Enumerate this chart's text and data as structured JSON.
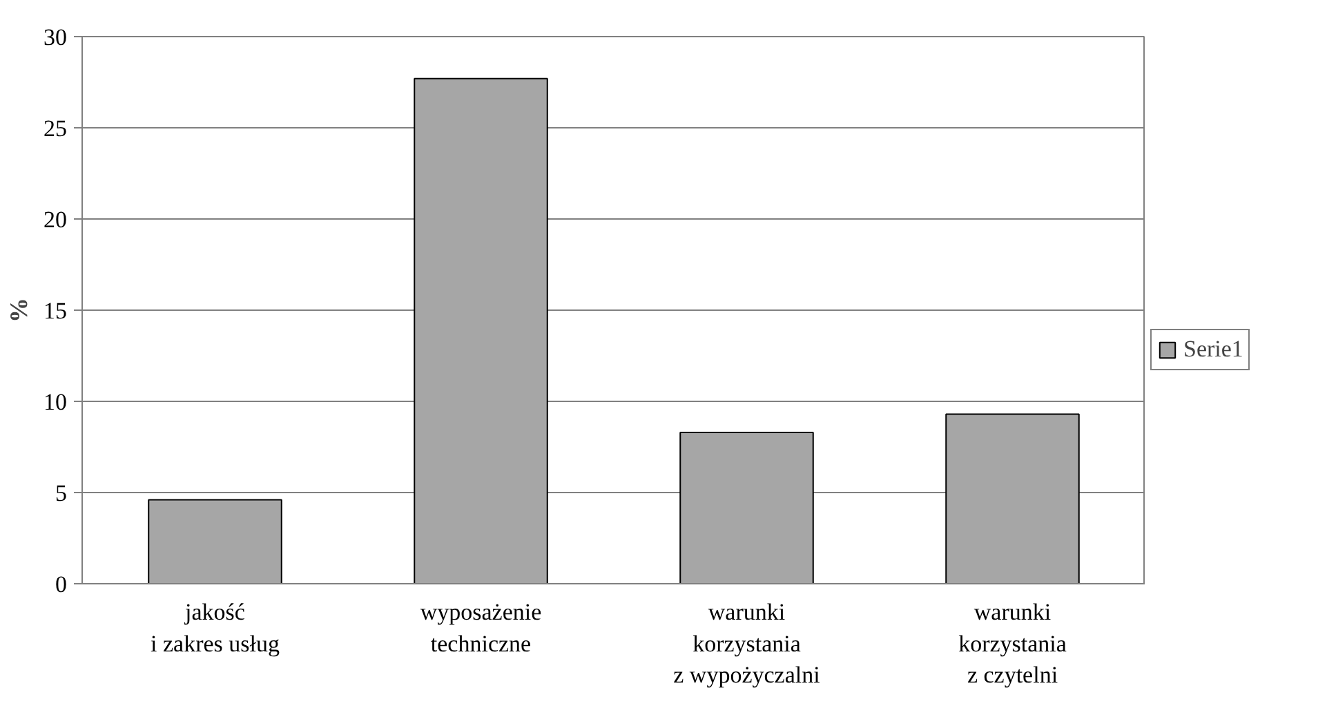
{
  "chart_data": {
    "type": "bar",
    "ylabel": "%",
    "categories": [
      "jakość\ni zakres usług",
      "wyposażenie\ntechniczne",
      "warunki\nkorzystania\nz wypożyczalni",
      "warunki\nkorzystania\nz czytelni"
    ],
    "series": [
      {
        "name": "Serie1",
        "color": "#a6a6a6",
        "values": [
          4.6,
          27.7,
          8.3,
          9.3
        ]
      }
    ],
    "ylim": [
      0,
      30
    ],
    "yticks": [
      0,
      5,
      10,
      15,
      20,
      25,
      30
    ],
    "grid": "y",
    "legend": "right"
  }
}
